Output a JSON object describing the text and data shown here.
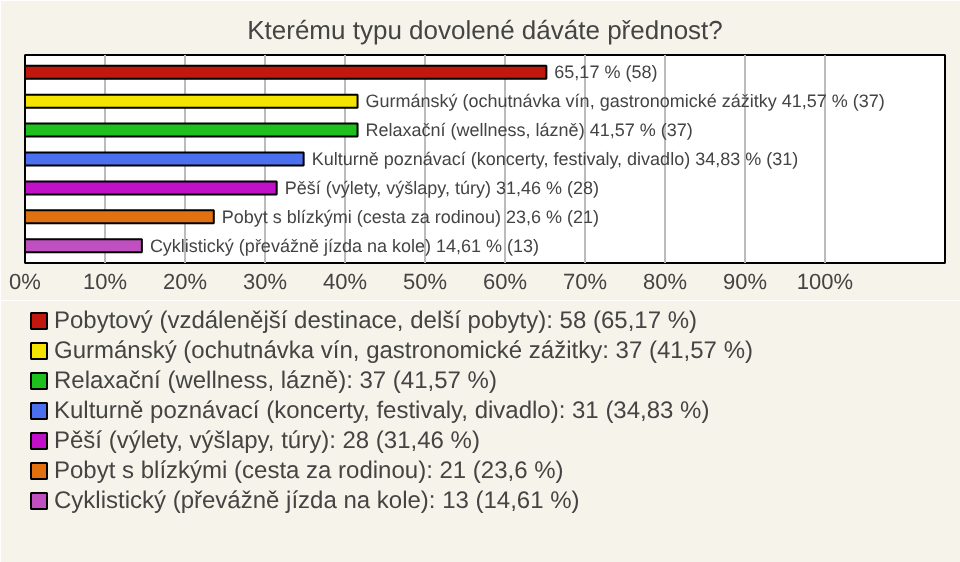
{
  "chart_data": {
    "type": "bar",
    "orientation": "horizontal",
    "title": "Kterému typu dovolené dáváte přednost?",
    "categories": [
      null,
      null,
      null,
      null,
      null,
      null,
      null
    ],
    "series": [
      {
        "name": "Pobytový (vzdálenější destinace, delší pobyty): 58 (65,17 %)",
        "color": "#c0180c",
        "values": [
          65.17,
          null,
          null,
          null,
          null,
          null,
          null
        ],
        "value_labels": [
          "65,17 % (58)",
          null,
          null,
          null,
          null,
          null,
          null
        ]
      },
      {
        "name": "Gurmánský (ochutnávka vín, gastronomické zážitky: 37 (41,57 %)",
        "color": "#f5e400",
        "values": [
          null,
          41.57,
          null,
          null,
          null,
          null,
          null
        ],
        "value_labels": [
          null,
          "Gurmánský (ochutnávka vín, gastronomické zážitky 41,57 % (37)",
          null,
          null,
          null,
          null,
          null
        ]
      },
      {
        "name": "Relaxační (wellness, lázně): 37 (41,57 %)",
        "color": "#1ec01e",
        "values": [
          null,
          null,
          41.57,
          null,
          null,
          null,
          null
        ],
        "value_labels": [
          null,
          null,
          "Relaxační (wellness, lázně) 41,57 % (37)",
          null,
          null,
          null,
          null
        ]
      },
      {
        "name": "Kulturně poznávací (koncerty, festivaly, divadlo): 31 (34,83 %)",
        "color": "#4a70f0",
        "values": [
          null,
          null,
          null,
          34.83,
          null,
          null,
          null
        ],
        "value_labels": [
          null,
          null,
          null,
          "Kulturně poznávací (koncerty, festivaly, divadlo) 34,83 % (31)",
          null,
          null,
          null
        ]
      },
      {
        "name": "Pěší (výlety, výšlapy, túry): 28 (31,46 %)",
        "color": "#c010c8",
        "values": [
          null,
          null,
          null,
          null,
          31.46,
          null,
          null
        ],
        "value_labels": [
          null,
          null,
          null,
          null,
          "Pěší (výlety, výšlapy, túry) 31,46 % (28)",
          null,
          null
        ]
      },
      {
        "name": "Pobyt s blízkými (cesta za rodinou): 21 (23,6 %)",
        "color": "#e07010",
        "values": [
          null,
          null,
          null,
          null,
          null,
          23.6,
          null
        ],
        "value_labels": [
          null,
          null,
          null,
          null,
          null,
          "Pobyt s blízkými (cesta za rodinou) 23,6 % (21)",
          null
        ]
      },
      {
        "name": "Cyklistický (převážně jízda na kole): 13 (14,61 %)",
        "color": "#c050c0",
        "values": [
          null,
          null,
          null,
          null,
          null,
          null,
          14.61
        ],
        "value_labels": [
          null,
          null,
          null,
          null,
          null,
          null,
          "Cyklistický (převážně jízda na kole) 14,61 % (13)"
        ]
      }
    ],
    "xlim": [
      0,
      115
    ],
    "xticks": [
      {
        "value": 0,
        "label": "0%"
      },
      {
        "value": 10,
        "label": "10%"
      },
      {
        "value": 20,
        "label": "20%"
      },
      {
        "value": 30,
        "label": "30%"
      },
      {
        "value": 40,
        "label": "40%"
      },
      {
        "value": 50,
        "label": "50%"
      },
      {
        "value": 60,
        "label": "60%"
      },
      {
        "value": 70,
        "label": "70%"
      },
      {
        "value": 80,
        "label": "80%"
      },
      {
        "value": 90,
        "label": "90%"
      },
      {
        "value": 100,
        "label": "100%"
      }
    ],
    "grid": "x",
    "legend": "bottom"
  }
}
